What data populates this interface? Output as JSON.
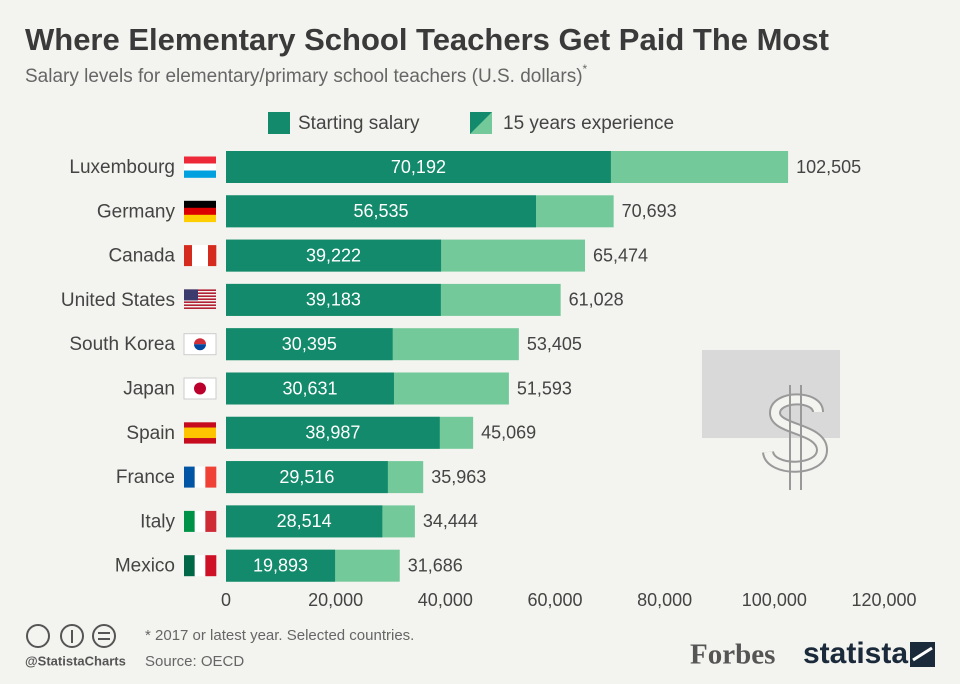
{
  "chart_data": {
    "type": "bar",
    "orientation": "horizontal",
    "title": "Where Elementary School Teachers Get Paid The Most",
    "subtitle": "Salary levels for elementary/primary school teachers (U.S. dollars)",
    "subtitle_mark": "*",
    "categories": [
      "Luxembourg",
      "Germany",
      "Canada",
      "United States",
      "South Korea",
      "Japan",
      "Spain",
      "France",
      "Italy",
      "Mexico"
    ],
    "series": [
      {
        "name": "Starting salary",
        "color": "#138a6b",
        "values": [
          70192,
          56535,
          39222,
          39183,
          30395,
          30631,
          38987,
          29516,
          28514,
          19893
        ],
        "value_labels": [
          "70,192",
          "56,535",
          "39,222",
          "39,183",
          "30,395",
          "30,631",
          "38,987",
          "29,516",
          "28,514",
          "19,893"
        ]
      },
      {
        "name": "15 years experience",
        "color": "#74c99a",
        "values": [
          102505,
          70693,
          65474,
          61028,
          53405,
          51593,
          45069,
          35963,
          34444,
          31686
        ],
        "value_labels": [
          "102,505",
          "70,693",
          "65,474",
          "61,028",
          "53,405",
          "51,593",
          "45,069",
          "35,963",
          "34,444",
          "31,686"
        ]
      }
    ],
    "xlim": [
      0,
      120000
    ],
    "xticks": [
      0,
      {
        "value": 20000,
        "label": "20,000"
      },
      {
        "value": 40000,
        "label": "40,000"
      },
      {
        "value": 60000,
        "label": "60,000"
      },
      {
        "value": 80000,
        "label": "80,000"
      },
      {
        "value": 100000,
        "label": "100,000"
      },
      {
        "value": 120000,
        "label": "120,000"
      }
    ],
    "grid": false
  },
  "footer": {
    "note": "* 2017 or latest year. Selected countries.",
    "source": "Source: OECD",
    "handle": "@StatistaCharts",
    "brand1": "Forbes",
    "brand2": "statista"
  }
}
